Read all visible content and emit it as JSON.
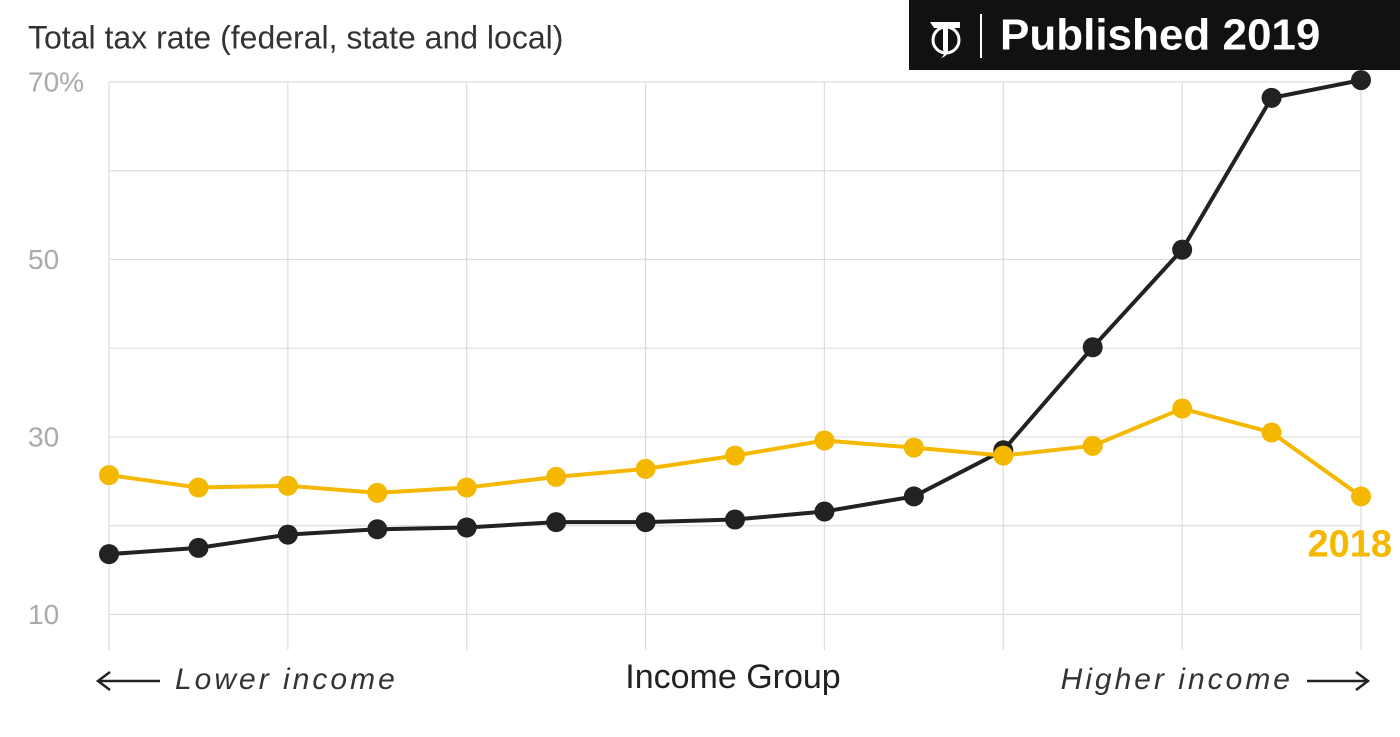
{
  "chart_data": {
    "type": "line",
    "title": "Total tax rate (federal, state and local)",
    "badge": "Published 2019",
    "x_label": "Income Group",
    "x_left_label": "Lower income",
    "x_right_label": "Higher income",
    "categories": [
      null,
      null,
      null,
      null,
      null,
      null,
      null,
      null,
      null,
      null,
      null,
      null,
      null,
      null,
      null
    ],
    "series": [
      {
        "color": "#222222",
        "values": [
          16.8,
          17.5,
          19.0,
          19.6,
          19.8,
          20.4,
          20.4,
          20.7,
          21.6,
          23.3,
          28.5,
          40.1,
          51.1,
          68.2,
          70.2
        ]
      },
      {
        "name": "2018",
        "color": "#f5b800",
        "values": [
          25.7,
          24.3,
          24.5,
          23.7,
          24.3,
          25.5,
          26.4,
          27.9,
          29.6,
          28.8,
          27.9,
          29.0,
          33.2,
          30.5,
          23.3
        ]
      }
    ],
    "ylim": [
      6,
      71
    ],
    "yticks": [
      10,
      20,
      30,
      40,
      50,
      60,
      {
        "value": 70,
        "label": "70%"
      }
    ],
    "ytick_labels_shown": [
      10,
      30,
      50,
      70
    ],
    "grid": true
  }
}
